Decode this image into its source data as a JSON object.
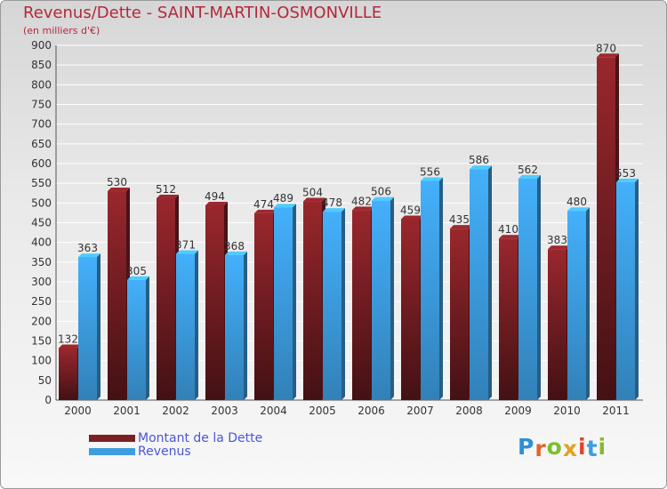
{
  "title": "Revenus/Dette - SAINT-MARTIN-OSMONVILLE",
  "subtitle": "(en milliers d'€)",
  "brand": {
    "letters": [
      "P",
      "r",
      "o",
      "x",
      "i",
      "t",
      "i"
    ],
    "colors": [
      "#2e8fd8",
      "#e0652a",
      "#7cbf2b",
      "#e2a220",
      "#e0442a",
      "#3aa0e0",
      "#8ab82c"
    ]
  },
  "chart_data": {
    "type": "bar",
    "categories": [
      "2000",
      "2001",
      "2002",
      "2003",
      "2004",
      "2005",
      "2006",
      "2007",
      "2008",
      "2009",
      "2010",
      "2011"
    ],
    "series": [
      {
        "name": "Montant de la Dette",
        "color": "#7a1f24",
        "values": [
          132,
          530,
          512,
          494,
          474,
          504,
          482,
          459,
          435,
          410,
          383,
          870
        ]
      },
      {
        "name": "Revenus",
        "color": "#3d9de0",
        "values": [
          363,
          305,
          371,
          368,
          489,
          478,
          506,
          556,
          586,
          562,
          480,
          553
        ]
      }
    ],
    "ylim": [
      0,
      900
    ],
    "yticks": [
      0,
      50,
      100,
      150,
      200,
      250,
      300,
      350,
      400,
      450,
      500,
      550,
      600,
      650,
      700,
      750,
      800,
      850,
      900
    ],
    "grid": true,
    "legend_position": "bottom-left"
  }
}
